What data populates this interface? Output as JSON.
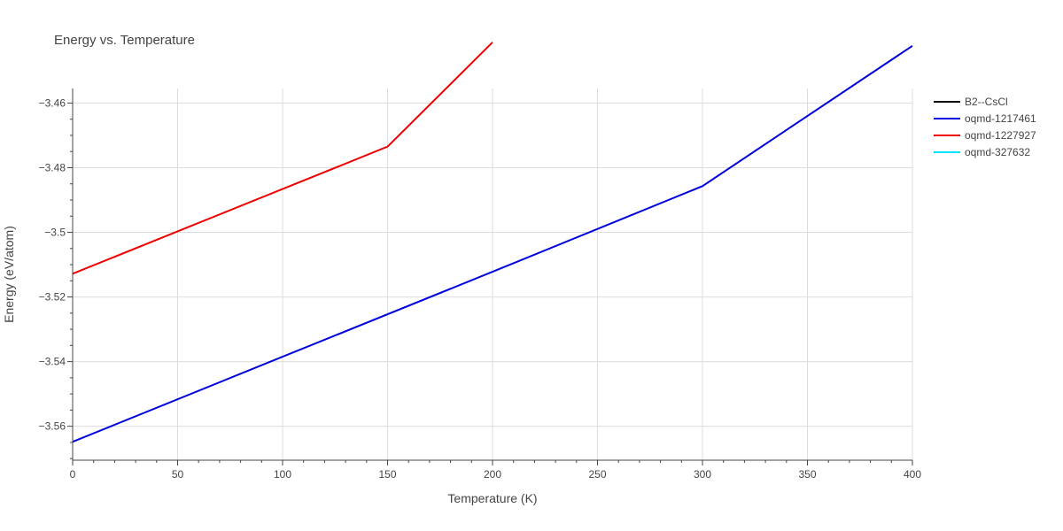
{
  "chart_data": {
    "type": "line",
    "title": "Energy vs. Temperature",
    "xlabel": "Temperature (K)",
    "ylabel": "Energy (eV/atom)",
    "xlim": [
      0,
      400
    ],
    "ylim": [
      -3.5705,
      -3.4555
    ],
    "x_ticks": [
      0,
      50,
      100,
      150,
      200,
      250,
      300,
      350,
      400
    ],
    "y_ticks": [
      -3.46,
      -3.48,
      -3.5,
      -3.52,
      -3.54,
      -3.56
    ],
    "y_tick_labels": [
      "−3.46",
      "−3.48",
      "−3.5",
      "−3.52",
      "−3.54",
      "−3.56"
    ],
    "grid": true,
    "legend_position": "right",
    "series": [
      {
        "name": "B2--CsCl",
        "color": "#000000",
        "x": [],
        "y": []
      },
      {
        "name": "oqmd-1217461",
        "color": "#0000dd",
        "x": [
          0,
          100,
          200,
          300,
          400
        ],
        "y": [
          -3.5648,
          -3.5385,
          -3.5122,
          -3.4857,
          -3.4423
        ]
      },
      {
        "name": "oqmd-1227927",
        "color": "#ee0000",
        "x": [
          0,
          50,
          100,
          150,
          200
        ],
        "y": [
          -3.5128,
          -3.4997,
          -3.4866,
          -3.4735,
          -3.4412
        ]
      },
      {
        "name": "oqmd-327632",
        "color": "#00e5ff",
        "x": [],
        "y": []
      }
    ]
  }
}
